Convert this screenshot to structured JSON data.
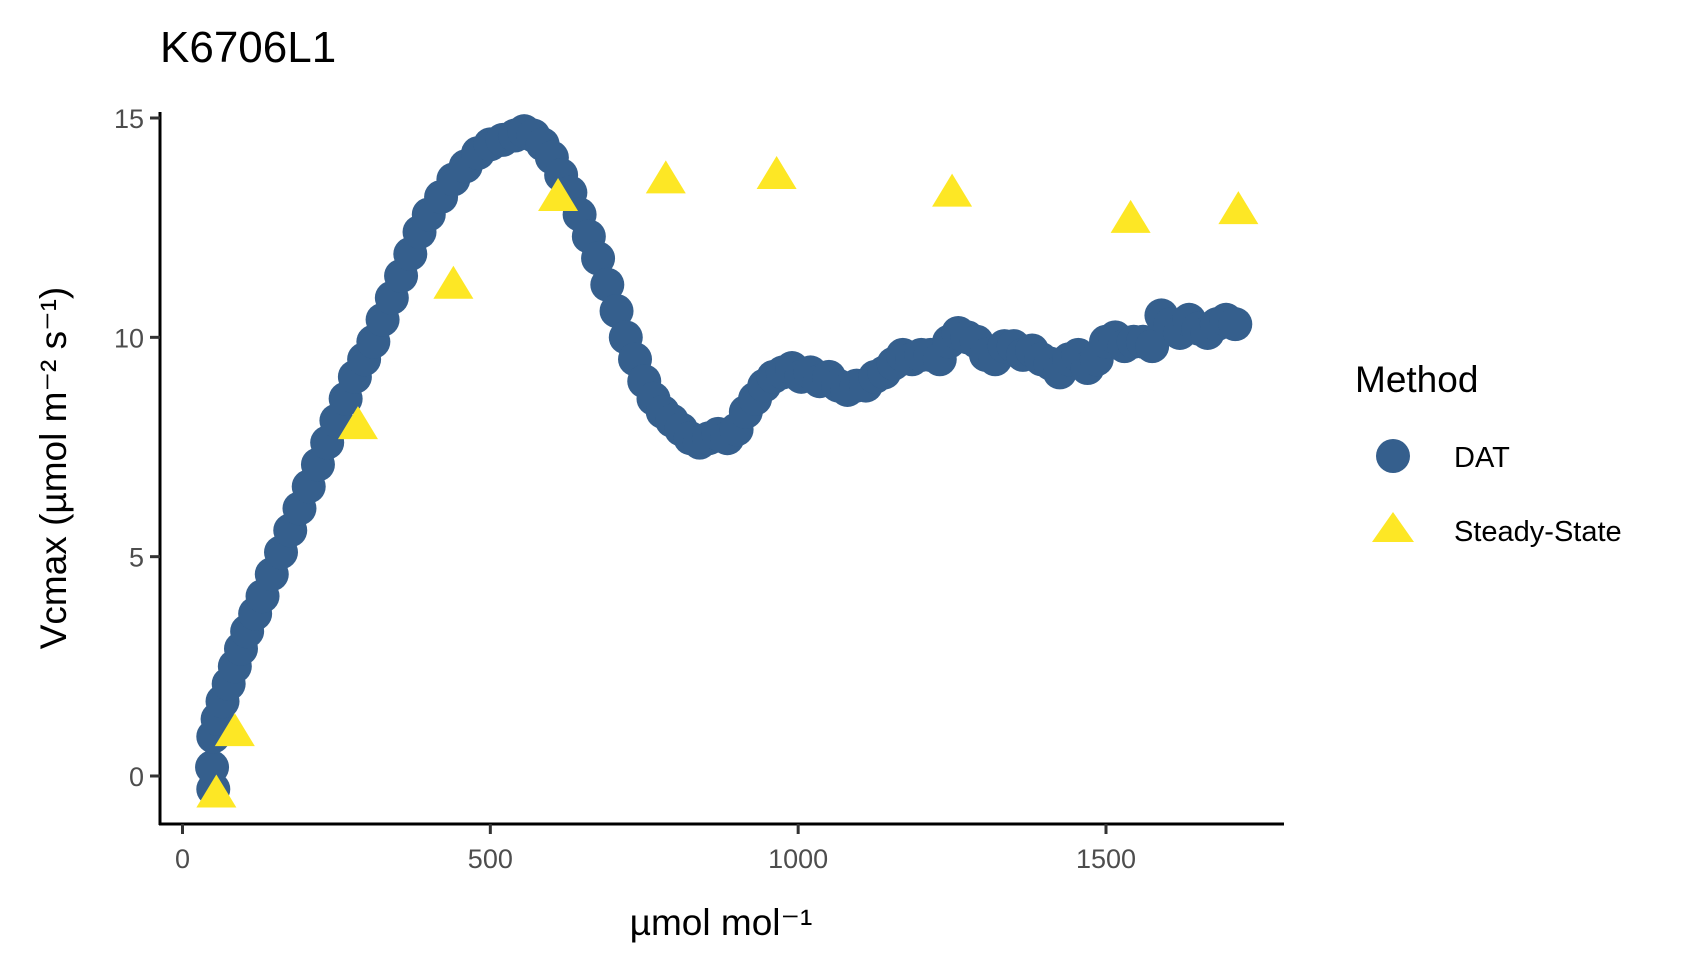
{
  "chart_data": {
    "type": "scatter",
    "title": "K6706L1",
    "xlabel": "µmol mol⁻¹",
    "ylabel": "Vcmax (µmol m⁻² s⁻¹)",
    "xlim": [
      -30,
      1800
    ],
    "ylim": [
      -1.2,
      15.3
    ],
    "x_ticks": [
      0,
      500,
      1000,
      1500
    ],
    "y_ticks": [
      0,
      5,
      10,
      15
    ],
    "grid": false,
    "legend_position": "right",
    "legend_title": "Method",
    "series": [
      {
        "name": "DAT",
        "marker": "circle",
        "color": "#355f8d",
        "points": [
          [
            50,
            -0.3
          ],
          [
            48,
            0.2
          ],
          [
            50,
            0.9
          ],
          [
            57,
            1.3
          ],
          [
            65,
            1.7
          ],
          [
            75,
            2.1
          ],
          [
            85,
            2.5
          ],
          [
            95,
            2.9
          ],
          [
            105,
            3.3
          ],
          [
            118,
            3.7
          ],
          [
            130,
            4.1
          ],
          [
            145,
            4.6
          ],
          [
            160,
            5.1
          ],
          [
            175,
            5.6
          ],
          [
            190,
            6.1
          ],
          [
            205,
            6.6
          ],
          [
            220,
            7.1
          ],
          [
            235,
            7.6
          ],
          [
            250,
            8.1
          ],
          [
            265,
            8.6
          ],
          [
            280,
            9.1
          ],
          [
            295,
            9.5
          ],
          [
            310,
            9.9
          ],
          [
            325,
            10.4
          ],
          [
            340,
            10.9
          ],
          [
            355,
            11.4
          ],
          [
            370,
            11.9
          ],
          [
            385,
            12.4
          ],
          [
            400,
            12.8
          ],
          [
            420,
            13.2
          ],
          [
            440,
            13.6
          ],
          [
            460,
            13.9
          ],
          [
            480,
            14.2
          ],
          [
            500,
            14.4
          ],
          [
            520,
            14.5
          ],
          [
            540,
            14.6
          ],
          [
            555,
            14.7
          ],
          [
            570,
            14.6
          ],
          [
            585,
            14.4
          ],
          [
            600,
            14.1
          ],
          [
            615,
            13.7
          ],
          [
            630,
            13.3
          ],
          [
            645,
            12.8
          ],
          [
            660,
            12.3
          ],
          [
            675,
            11.8
          ],
          [
            690,
            11.2
          ],
          [
            705,
            10.6
          ],
          [
            720,
            10.0
          ],
          [
            735,
            9.5
          ],
          [
            750,
            9.0
          ],
          [
            765,
            8.6
          ],
          [
            780,
            8.3
          ],
          [
            795,
            8.1
          ],
          [
            810,
            7.9
          ],
          [
            825,
            7.7
          ],
          [
            840,
            7.6
          ],
          [
            855,
            7.7
          ],
          [
            870,
            7.8
          ],
          [
            885,
            7.7
          ],
          [
            900,
            7.9
          ],
          [
            915,
            8.3
          ],
          [
            930,
            8.6
          ],
          [
            945,
            8.9
          ],
          [
            960,
            9.1
          ],
          [
            975,
            9.2
          ],
          [
            990,
            9.3
          ],
          [
            1005,
            9.1
          ],
          [
            1020,
            9.2
          ],
          [
            1035,
            9.0
          ],
          [
            1050,
            9.1
          ],
          [
            1065,
            8.9
          ],
          [
            1080,
            8.8
          ],
          [
            1095,
            8.9
          ],
          [
            1110,
            8.9
          ],
          [
            1125,
            9.1
          ],
          [
            1140,
            9.2
          ],
          [
            1155,
            9.4
          ],
          [
            1170,
            9.6
          ],
          [
            1185,
            9.5
          ],
          [
            1200,
            9.6
          ],
          [
            1215,
            9.6
          ],
          [
            1230,
            9.5
          ],
          [
            1245,
            9.9
          ],
          [
            1260,
            10.1
          ],
          [
            1275,
            10.0
          ],
          [
            1290,
            9.9
          ],
          [
            1305,
            9.6
          ],
          [
            1320,
            9.5
          ],
          [
            1335,
            9.8
          ],
          [
            1350,
            9.8
          ],
          [
            1365,
            9.6
          ],
          [
            1380,
            9.7
          ],
          [
            1395,
            9.5
          ],
          [
            1410,
            9.4
          ],
          [
            1425,
            9.2
          ],
          [
            1440,
            9.5
          ],
          [
            1455,
            9.6
          ],
          [
            1470,
            9.3
          ],
          [
            1485,
            9.5
          ],
          [
            1500,
            9.9
          ],
          [
            1515,
            10.0
          ],
          [
            1530,
            9.8
          ],
          [
            1545,
            9.9
          ],
          [
            1560,
            9.9
          ],
          [
            1575,
            9.8
          ],
          [
            1590,
            10.5
          ],
          [
            1605,
            10.3
          ],
          [
            1620,
            10.1
          ],
          [
            1635,
            10.4
          ],
          [
            1650,
            10.2
          ],
          [
            1665,
            10.1
          ],
          [
            1680,
            10.3
          ],
          [
            1695,
            10.4
          ],
          [
            1710,
            10.3
          ]
        ]
      },
      {
        "name": "Steady-State",
        "marker": "triangle",
        "color": "#fde725",
        "points": [
          [
            55,
            -0.4
          ],
          [
            85,
            1.0
          ],
          [
            285,
            8.0
          ],
          [
            440,
            11.2
          ],
          [
            610,
            13.2
          ],
          [
            785,
            13.6
          ],
          [
            965,
            13.7
          ],
          [
            1250,
            13.3
          ],
          [
            1540,
            12.7
          ],
          [
            1715,
            12.9
          ]
        ]
      }
    ]
  }
}
